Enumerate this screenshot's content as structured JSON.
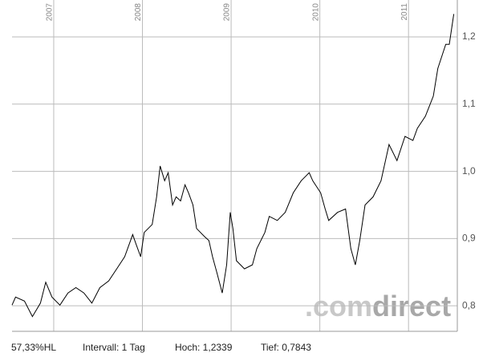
{
  "chart_data": {
    "type": "line",
    "x": [
      2006.53,
      2006.57,
      2006.67,
      2006.76,
      2006.85,
      2006.91,
      2006.98,
      2007.07,
      2007.16,
      2007.25,
      2007.34,
      2007.43,
      2007.52,
      2007.62,
      2007.71,
      2007.8,
      2007.89,
      2007.93,
      2007.98,
      2008.02,
      2008.11,
      2008.16,
      2008.2,
      2008.25,
      2008.29,
      2008.34,
      2008.38,
      2008.43,
      2008.48,
      2008.52,
      2008.57,
      2008.61,
      2008.7,
      2008.75,
      2008.79,
      2008.84,
      2008.9,
      2008.95,
      2008.99,
      2009.02,
      2009.06,
      2009.15,
      2009.24,
      2009.29,
      2009.38,
      2009.43,
      2009.52,
      2009.61,
      2009.7,
      2009.79,
      2009.88,
      2009.92,
      2010.01,
      2010.06,
      2010.1,
      2010.2,
      2010.29,
      2010.35,
      2010.4,
      2010.45,
      2010.51,
      2010.6,
      2010.69,
      2010.78,
      2010.87,
      2010.96,
      2011.05,
      2011.1,
      2011.19,
      2011.28,
      2011.33,
      2011.42,
      2011.46,
      2011.51
    ],
    "values": [
      0.801,
      0.813,
      0.807,
      0.784,
      0.804,
      0.835,
      0.813,
      0.801,
      0.819,
      0.827,
      0.819,
      0.804,
      0.827,
      0.837,
      0.855,
      0.873,
      0.906,
      0.891,
      0.873,
      0.909,
      0.921,
      0.962,
      1.008,
      0.986,
      0.998,
      0.95,
      0.962,
      0.956,
      0.98,
      0.968,
      0.95,
      0.915,
      0.903,
      0.897,
      0.873,
      0.849,
      0.819,
      0.861,
      0.939,
      0.915,
      0.867,
      0.855,
      0.861,
      0.885,
      0.909,
      0.933,
      0.927,
      0.939,
      0.968,
      0.986,
      0.998,
      0.986,
      0.968,
      0.944,
      0.927,
      0.939,
      0.944,
      0.885,
      0.861,
      0.897,
      0.95,
      0.962,
      0.986,
      1.04,
      1.016,
      1.052,
      1.046,
      1.064,
      1.082,
      1.112,
      1.153,
      1.189,
      1.189,
      1.234
    ],
    "color": "#000000",
    "xlim": [
      2006.53,
      2011.55
    ],
    "xticks": [
      2007,
      2008,
      2009,
      2010,
      2011
    ],
    "ylim": [
      0.762,
      1.243
    ],
    "yticks": [
      {
        "value": 0.8,
        "label": "0,8"
      },
      {
        "value": 0.9,
        "label": "0,9"
      },
      {
        "value": 1.0,
        "label": "1,0"
      },
      {
        "value": 1.1,
        "label": "1,1"
      },
      {
        "value": 1.2,
        "label": "1,2"
      }
    ],
    "grid": true,
    "footer": [
      "57,33%HL",
      "Intervall: 1 Tag",
      "Hoch: 1,2339",
      "Tief: 0,7843"
    ],
    "watermark": [
      ".com",
      "direct"
    ]
  }
}
